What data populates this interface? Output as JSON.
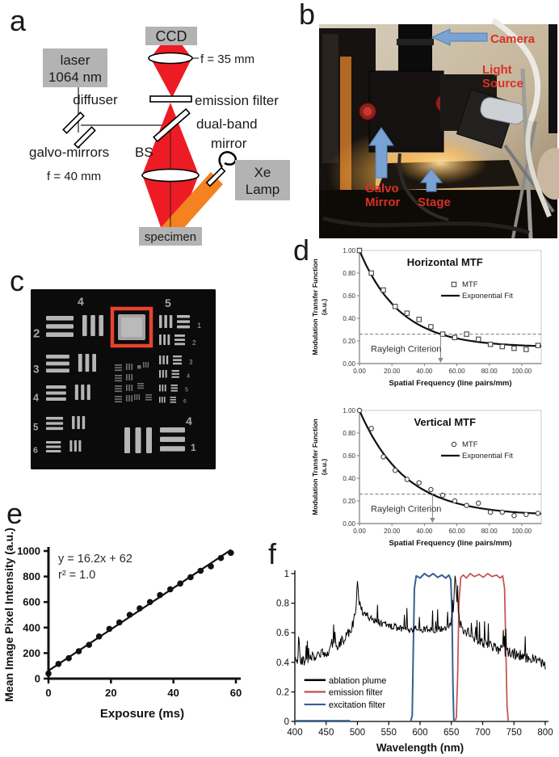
{
  "panels": {
    "a": {
      "label": "a",
      "boxes": {
        "laser_line1": "laser",
        "laser_line2": "1064 nm",
        "ccd": "CCD",
        "xe_line1": "Xe",
        "xe_line2": "Lamp",
        "specimen": "specimen"
      },
      "labels": {
        "f35": "f = 35 mm",
        "emission_filter": "emission filter",
        "dual_band": "dual-band",
        "mirror": "mirror",
        "diffuser": "diffuser",
        "galvo_mirrors": "galvo-mirrors",
        "bs": "BS",
        "f40": "f = 40 mm"
      },
      "colors": {
        "beam_red": "#ed1c24",
        "beam_orange": "#f58220",
        "box_gray": "#b3b3b3"
      }
    },
    "b": {
      "label": "b",
      "annotations": {
        "camera": "Camera",
        "light_source": [
          "Light",
          "Source"
        ],
        "galvo_mirror": [
          "Galvo",
          "Mirror"
        ],
        "stage": "Stage"
      },
      "colors": {
        "label_red": "#d93025",
        "arrow_blue": "#7aa3d4"
      }
    },
    "c": {
      "label": "c",
      "top_numbers": [
        "4",
        "5"
      ],
      "left_numbers": [
        "2",
        "3",
        "4",
        "5",
        "6"
      ],
      "right_numbers": [
        "1",
        "2",
        "3",
        "4",
        "5",
        "6"
      ],
      "bottom_numbers": [
        "4",
        "1"
      ],
      "highlight_color": "#e8432e"
    },
    "d": {
      "label": "d"
    },
    "e": {
      "label": "e"
    },
    "f": {
      "label": "f"
    }
  },
  "chart_data": [
    {
      "id": "horizontal_mtf",
      "type": "scatter",
      "title": "Horizontal MTF",
      "marker": "square",
      "xlabel": "Spatial Frequency (line pairs/mm)",
      "ylabel_lines": [
        "Modulation Transfer Function",
        "(a.u.)"
      ],
      "xlim": [
        0,
        112
      ],
      "ylim": [
        0,
        1
      ],
      "xticks": [
        0,
        20,
        40,
        60,
        80,
        100
      ],
      "xtick_labels": [
        "0.00",
        "20.00",
        "40.00",
        "60.00",
        "80.00",
        "100.00"
      ],
      "yticks": [
        0,
        0.2,
        0.4,
        0.6,
        0.8,
        1
      ],
      "ytick_labels": [
        "0.00",
        "0.20",
        "0.40",
        "0.60",
        "0.80",
        "1.00"
      ],
      "points_x": [
        0,
        7.3,
        14.7,
        22,
        29.3,
        36.7,
        44,
        51.3,
        58.7,
        66,
        73.3,
        80.7,
        88,
        95.3,
        102.7,
        110
      ],
      "points_y": [
        1,
        0.8,
        0.65,
        0.505,
        0.445,
        0.39,
        0.325,
        0.26,
        0.23,
        0.26,
        0.215,
        0.17,
        0.15,
        0.135,
        0.125,
        0.16
      ],
      "fit": {
        "a": 0.145,
        "b": 0.855,
        "tau": 25
      },
      "legend": {
        "marker_label": "MTF",
        "fit_label": "Exponential Fit"
      },
      "rayleigh": {
        "y": 0.26,
        "arrow_x": 50,
        "label": "Rayleigh Criterion"
      }
    },
    {
      "id": "vertical_mtf",
      "type": "scatter",
      "title": "Vertical MTF",
      "marker": "circle",
      "xlabel": "Spatial Frequency (line pairs/mm)",
      "ylabel_lines": [
        "Modulation Transfer Function",
        "(a.u.)"
      ],
      "xlim": [
        0,
        112
      ],
      "ylim": [
        0,
        1
      ],
      "xticks": [
        0,
        20,
        40,
        60,
        80,
        100
      ],
      "xtick_labels": [
        "0.00",
        "20.00",
        "40.00",
        "60.00",
        "80.00",
        "100.00"
      ],
      "yticks": [
        0,
        0.2,
        0.4,
        0.6,
        0.8,
        1
      ],
      "ytick_labels": [
        "0.00",
        "0.20",
        "0.40",
        "0.60",
        "0.80",
        "1.00"
      ],
      "points_x": [
        0,
        7.3,
        14.7,
        22,
        29.3,
        36.7,
        44,
        51.3,
        58.7,
        66,
        73.3,
        80.7,
        88,
        95.3,
        102.7,
        110
      ],
      "points_y": [
        1,
        0.84,
        0.59,
        0.47,
        0.39,
        0.36,
        0.3,
        0.25,
        0.2,
        0.16,
        0.18,
        0.1,
        0.1,
        0.07,
        0.08,
        0.09
      ],
      "fit": {
        "a": 0.07,
        "b": 0.93,
        "tau": 28
      },
      "legend": {
        "marker_label": "MTF",
        "fit_label": "Exponential Fit"
      },
      "rayleigh": {
        "y": 0.26,
        "arrow_x": 45,
        "label": "Rayleigh Criterion"
      }
    },
    {
      "id": "exposure_linearity",
      "type": "scatter",
      "marker": "filled_circle",
      "equation_lines": [
        "y = 16.2x + 62",
        "r² = 1.0"
      ],
      "xlabel": "Exposure (ms)",
      "ylabel": "Mean Image Pixel Intensity (a.u.)",
      "xlim": [
        0,
        60
      ],
      "ylim": [
        0,
        1000
      ],
      "xticks": [
        0,
        20,
        40,
        60
      ],
      "xtick_labels": [
        "0",
        "20",
        "40",
        "60"
      ],
      "yticks": [
        0,
        200,
        400,
        600,
        800,
        1000
      ],
      "ytick_labels": [
        "0",
        "200",
        "400",
        "600",
        "800",
        "1000"
      ],
      "points_x": [
        0,
        3.2,
        6.5,
        9.7,
        13,
        16.2,
        19.5,
        22.7,
        26,
        29.2,
        32.5,
        35.7,
        39,
        42.2,
        45.5,
        48.7,
        52,
        55.2,
        58.4
      ],
      "points_y": [
        40,
        115,
        160,
        215,
        265,
        330,
        390,
        440,
        500,
        550,
        600,
        655,
        700,
        745,
        795,
        845,
        880,
        945,
        985
      ],
      "fit": {
        "slope": 16.2,
        "intercept": 62,
        "x_start": 0,
        "x_end": 58.5
      }
    },
    {
      "id": "filter_spectra",
      "type": "line",
      "xlabel": "Wavelength (nm)",
      "xlim": [
        400,
        800
      ],
      "ylim": [
        0,
        1
      ],
      "xticks": [
        400,
        450,
        500,
        550,
        600,
        650,
        700,
        750,
        800
      ],
      "xtick_labels": [
        "400",
        "450",
        "500",
        "550",
        "600",
        "650",
        "700",
        "750",
        "800"
      ],
      "yticks": [
        0,
        0.2,
        0.4,
        0.6,
        0.8,
        1
      ],
      "ytick_labels": [
        "0",
        "0.2",
        "0.4",
        "0.6",
        "0.8",
        "1"
      ],
      "legend": [
        "ablation plume",
        "emission filter",
        "excitation filter"
      ],
      "series": [
        {
          "name": "ablation plume",
          "color": "#000000",
          "noise": 0.05,
          "x": [
            400,
            405,
            410,
            415,
            420,
            425,
            430,
            435,
            440,
            445,
            450,
            455,
            460,
            465,
            470,
            475,
            480,
            485,
            490,
            494,
            497,
            500,
            502,
            505,
            508,
            512,
            516,
            520,
            525,
            530,
            535,
            540,
            545,
            550,
            555,
            560,
            565,
            570,
            575,
            580,
            585,
            590,
            595,
            600,
            605,
            610,
            615,
            620,
            625,
            630,
            635,
            640,
            645,
            650,
            653,
            656,
            658,
            661,
            664,
            668,
            672,
            676,
            680,
            685,
            690,
            695,
            700,
            705,
            710,
            715,
            720,
            725,
            730,
            735,
            740,
            745,
            750,
            755,
            760,
            765,
            770,
            775,
            780,
            785,
            790,
            795,
            800
          ],
          "y": [
            0.4,
            0.41,
            0.42,
            0.41,
            0.43,
            0.43,
            0.44,
            0.45,
            0.46,
            0.47,
            0.47,
            0.48,
            0.5,
            0.51,
            0.52,
            0.54,
            0.56,
            0.6,
            0.63,
            0.68,
            0.73,
            0.95,
            0.84,
            0.78,
            0.75,
            0.73,
            0.72,
            0.7,
            0.69,
            0.68,
            0.67,
            0.66,
            0.66,
            0.65,
            0.64,
            0.64,
            0.63,
            0.63,
            0.63,
            0.62,
            0.62,
            0.62,
            0.63,
            0.63,
            0.62,
            0.63,
            0.62,
            0.62,
            0.62,
            0.62,
            0.63,
            0.63,
            0.64,
            0.68,
            0.72,
            1.0,
            0.85,
            0.72,
            0.66,
            0.63,
            0.61,
            0.6,
            0.58,
            0.57,
            0.55,
            0.54,
            0.53,
            0.52,
            0.51,
            0.5,
            0.5,
            0.49,
            0.48,
            0.47,
            0.47,
            0.46,
            0.46,
            0.45,
            0.45,
            0.44,
            0.43,
            0.43,
            0.42,
            0.42,
            0.41,
            0.4,
            0.38
          ]
        },
        {
          "name": "emission filter",
          "color": "#c0504d",
          "x": [
            656,
            658,
            660,
            662,
            665,
            669,
            674,
            680,
            687,
            694,
            701,
            708,
            715,
            722,
            728,
            732,
            735,
            737,
            739,
            741
          ],
          "y": [
            0,
            0.03,
            0.3,
            0.8,
            0.975,
            0.99,
            0.97,
            1,
            0.98,
            0.995,
            0.975,
            1,
            0.98,
            0.99,
            0.97,
            0.985,
            0.9,
            0.5,
            0.1,
            0
          ]
        },
        {
          "name": "excitation filter",
          "color": "#376092",
          "segments": [
            {
              "x": [
                400,
                488
              ],
              "y": [
                0.005,
                0.005
              ]
            },
            {
              "x": [
                585,
                587.5,
                589,
                591,
                594,
                600,
                607,
                614,
                621,
                628,
                635,
                641,
                646,
                649,
                651,
                652.5,
                654
              ],
              "y": [
                0,
                0.04,
                0.45,
                0.9,
                0.985,
                0.97,
                1,
                0.98,
                1,
                0.975,
                0.99,
                0.97,
                0.99,
                0.96,
                0.75,
                0.25,
                0
              ]
            }
          ]
        }
      ]
    }
  ]
}
